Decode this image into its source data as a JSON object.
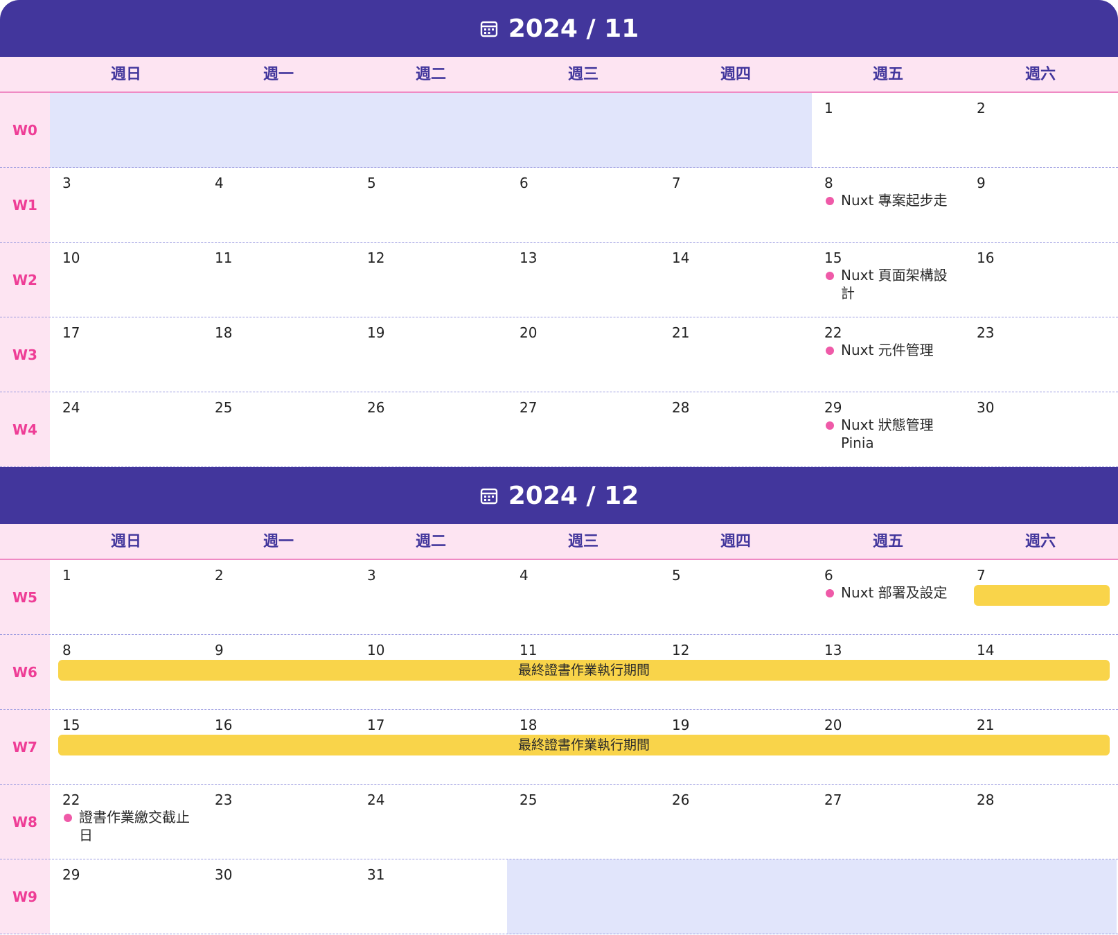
{
  "weekdays": [
    "週日",
    "週一",
    "週二",
    "週三",
    "週四",
    "週五",
    "週六"
  ],
  "november": {
    "title": "2024 / 11",
    "weeks": [
      {
        "label": "W0",
        "days": [
          "",
          "",
          "",
          "",
          "",
          "1",
          "2"
        ]
      },
      {
        "label": "W1",
        "days": [
          "3",
          "4",
          "5",
          "6",
          "7",
          "8",
          "9"
        ]
      },
      {
        "label": "W2",
        "days": [
          "10",
          "11",
          "12",
          "13",
          "14",
          "15",
          "16"
        ]
      },
      {
        "label": "W3",
        "days": [
          "17",
          "18",
          "19",
          "20",
          "21",
          "22",
          "23"
        ]
      },
      {
        "label": "W4",
        "days": [
          "24",
          "25",
          "26",
          "27",
          "28",
          "29",
          "30"
        ]
      }
    ],
    "events": {
      "w1_fri": "Nuxt 專案起步走",
      "w2_fri": "Nuxt 頁面架構設計",
      "w3_fri": "Nuxt 元件管理",
      "w4_fri": "Nuxt 狀態管理 Pinia"
    }
  },
  "december": {
    "title": "2024 / 12",
    "weeks": [
      {
        "label": "W5",
        "days": [
          "1",
          "2",
          "3",
          "4",
          "5",
          "6",
          "7"
        ]
      },
      {
        "label": "W6",
        "days": [
          "8",
          "9",
          "10",
          "11",
          "12",
          "13",
          "14"
        ]
      },
      {
        "label": "W7",
        "days": [
          "15",
          "16",
          "17",
          "18",
          "19",
          "20",
          "21"
        ]
      },
      {
        "label": "W8",
        "days": [
          "22",
          "23",
          "24",
          "25",
          "26",
          "27",
          "28"
        ]
      },
      {
        "label": "W9",
        "days": [
          "29",
          "30",
          "31",
          "",
          "",
          "",
          ""
        ]
      }
    ],
    "events": {
      "w5_fri": "Nuxt 部署及設定",
      "w8_sun": "證書作業繳交截止日"
    },
    "bars": {
      "w6": "最終證書作業執行期間",
      "w7": "最終證書作業執行期間"
    }
  },
  "colors": {
    "header_bg": "#42369c",
    "weekday_bg": "#fde4f2",
    "week_label": "#ee3d96",
    "empty_day": "#e1e5fb",
    "event_dot": "#ef5aa8",
    "bar": "#f9d44a"
  }
}
